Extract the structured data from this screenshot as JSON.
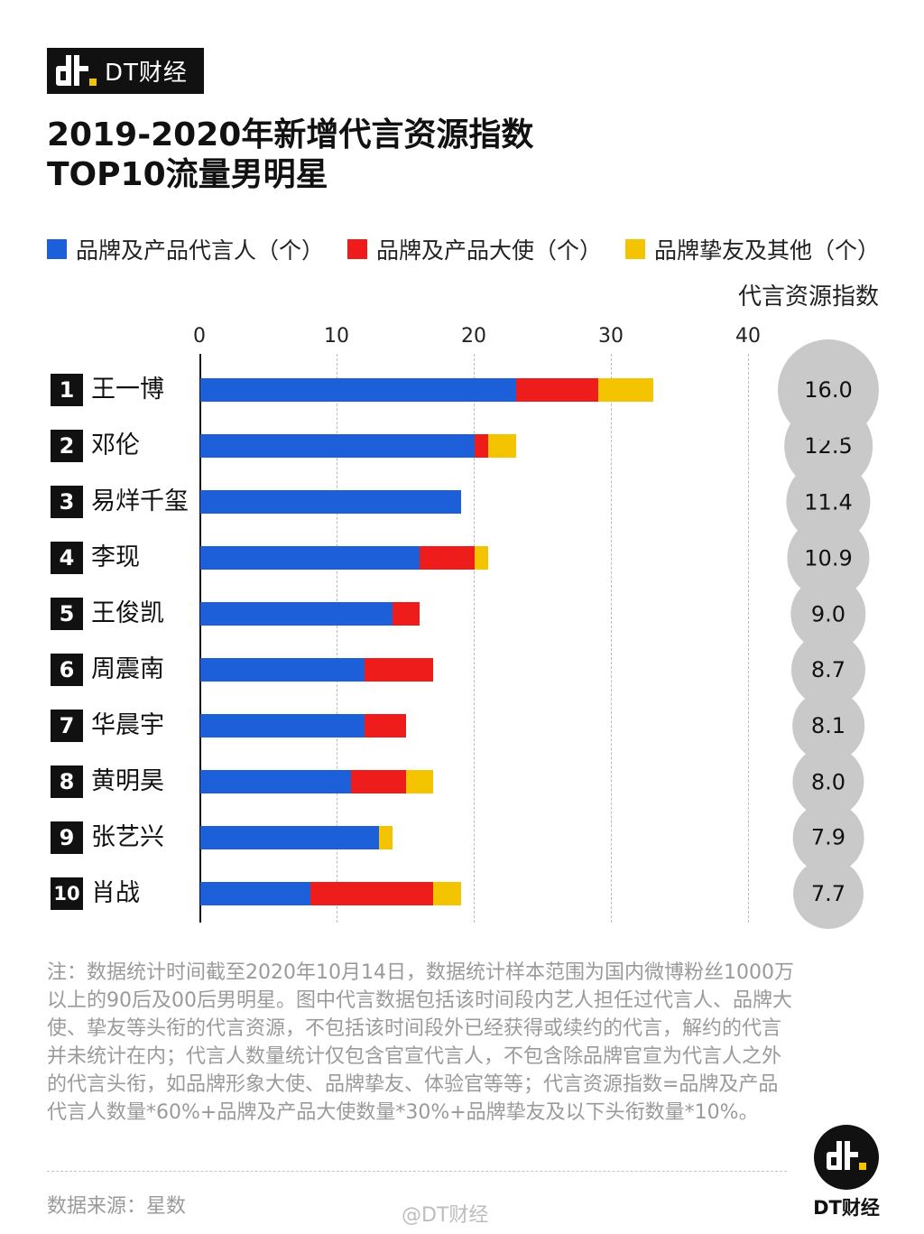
{
  "brand": {
    "name": "DT财经"
  },
  "chart_data": {
    "type": "bar",
    "stacked": true,
    "orientation": "horizontal",
    "title": "2019-2020年新增代言资源指数\nTOP10流量男明星",
    "xlim": [
      0,
      40
    ],
    "xticks": [
      "0",
      "10",
      "20",
      "30",
      "40"
    ],
    "legend_position": "top",
    "series": [
      {
        "name": "品牌及产品代言人（个）",
        "color": "#1d5fd8",
        "values": [
          23,
          20,
          19,
          16,
          14,
          12,
          12,
          11,
          13,
          8
        ]
      },
      {
        "name": "品牌及产品大使（个）",
        "color": "#ef1c1c",
        "values": [
          6,
          1,
          0,
          4,
          2,
          5,
          3,
          4,
          0,
          9
        ]
      },
      {
        "name": "品牌挚友及其他（个）",
        "color": "#f5c400",
        "values": [
          4,
          2,
          0,
          1,
          0,
          0,
          0,
          2,
          1,
          2
        ]
      }
    ],
    "categories": [
      "王一博",
      "邓伦",
      "易烊千玺",
      "李现",
      "王俊凯",
      "周震南",
      "华晨宇",
      "黄明昊",
      "张艺兴",
      "肖战"
    ],
    "ranks": [
      "1",
      "2",
      "3",
      "4",
      "5",
      "6",
      "7",
      "8",
      "9",
      "10"
    ],
    "index_label": "代言资源指数",
    "index_values": [
      "16.0",
      "12.5",
      "11.4",
      "10.9",
      "9.0",
      "8.7",
      "8.1",
      "8.0",
      "7.9",
      "7.7"
    ]
  },
  "note": "注：数据统计时间截至2020年10月14日，数据统计样本范围为国内微博粉丝1000万以上的90后及00后男明星。图中代言数据包括该时间段内艺人担任过代言人、品牌大使、挚友等头衔的代言资源，不包括该时间段外已经获得或续约的代言，解约的代言并未统计在内；代言人数量统计仅包含官宣代言人，不包含除品牌官宣为代言人之外的代言头衔，如品牌形象大使、品牌挚友、体验官等等；代言资源指数=品牌及产品代言人数量*60%+品牌及产品大使数量*30%+品牌挚友及以下头衔数量*10%。",
  "source": "数据来源：星数",
  "weibo": "@DT财经",
  "footer_brand": "DT财经"
}
